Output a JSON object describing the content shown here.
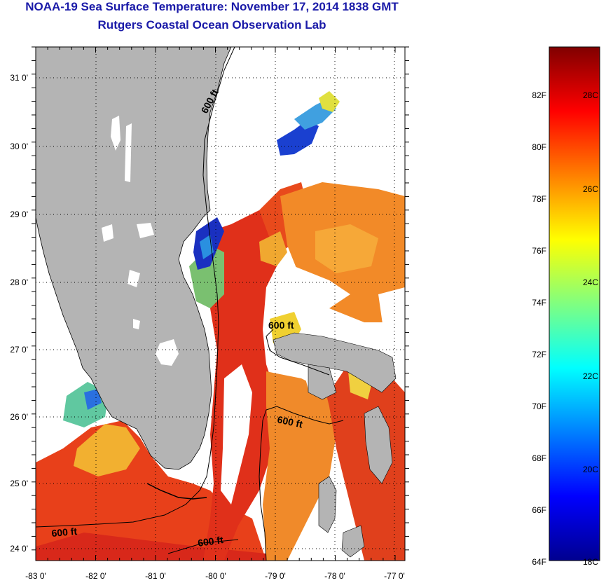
{
  "header": {
    "title": "NOAA-19 Sea Surface Temperature:  November 17, 2014 1838 GMT",
    "subtitle": "Rutgers Coastal Ocean Observation Lab"
  },
  "map": {
    "lon_ticks": [
      "-83 0'",
      "-82 0'",
      "-81 0'",
      "-80 0'",
      "-79 0'",
      "-78 0'",
      "-77 0'"
    ],
    "lat_ticks": [
      "31 0'",
      "30 0'",
      "29 0'",
      "28 0'",
      "27 0'",
      "26 0'",
      "25 0'",
      "24 0'"
    ],
    "contour_labels": [
      "600 ft",
      "600 ft",
      "600 ft",
      "600 ft",
      "600 ft"
    ],
    "colors": {
      "land": "#b4b4b4",
      "frame": "#000000",
      "title": "#1a1aa8"
    }
  },
  "colorbar": {
    "f_labels": [
      "82F",
      "80F",
      "78F",
      "76F",
      "74F",
      "72F",
      "70F",
      "68F",
      "66F",
      "64F"
    ],
    "c_labels": [
      "28C",
      "26C",
      "24C",
      "22C",
      "20C",
      "18C"
    ],
    "stops": [
      "#00008f",
      "#0000ff",
      "#0080ff",
      "#00ffff",
      "#80ff80",
      "#ffff00",
      "#ff8000",
      "#ff0000",
      "#800000"
    ]
  }
}
